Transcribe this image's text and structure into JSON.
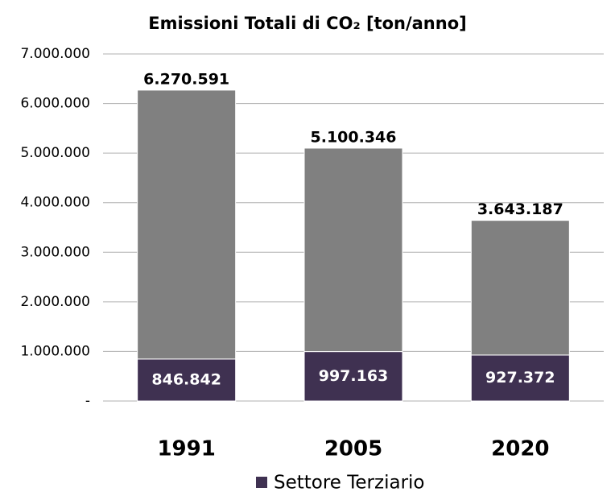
{
  "chart_data": {
    "type": "stacked_bar",
    "title": "Emissioni Totali  di CO₂ [ton/anno]",
    "categories": [
      "1991",
      "2005",
      "2020"
    ],
    "series": [
      {
        "name": "Settore Terziario",
        "color": "#3f3151",
        "values": [
          846842,
          997163,
          927372
        ],
        "value_labels": [
          "846.842",
          "997.163",
          "927.372"
        ]
      },
      {
        "color": "#808080",
        "values": [
          5423749,
          4103183,
          2715815
        ]
      }
    ],
    "totals": [
      6270591,
      5100346,
      3643187
    ],
    "total_labels": [
      "6.270.591",
      "5.100.346",
      "3.643.187"
    ],
    "ylim": [
      0,
      7000000
    ],
    "yticks": [
      {
        "value": 0,
        "label": "-"
      },
      {
        "value": 1000000,
        "label": "1.000.000"
      },
      {
        "value": 2000000,
        "label": "2.000.000"
      },
      {
        "value": 3000000,
        "label": "3.000.000"
      },
      {
        "value": 4000000,
        "label": "4.000.000"
      },
      {
        "value": 5000000,
        "label": "5.000.000"
      },
      {
        "value": 6000000,
        "label": "6.000.000"
      },
      {
        "value": 7000000,
        "label": "7.000.000"
      }
    ],
    "grid": true
  }
}
